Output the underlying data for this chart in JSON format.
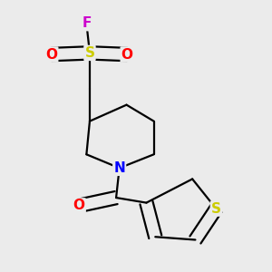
{
  "bg_color": "#ebebeb",
  "atom_colors": {
    "C": "#000000",
    "N": "#0000ff",
    "O": "#ff0000",
    "S_sulfonyl": "#cccc00",
    "S_thiophene": "#cccc00",
    "F": "#cc00cc"
  },
  "bond_color": "#000000",
  "bond_width": 1.6,
  "figsize": [
    3.0,
    3.0
  ],
  "dpi": 100
}
